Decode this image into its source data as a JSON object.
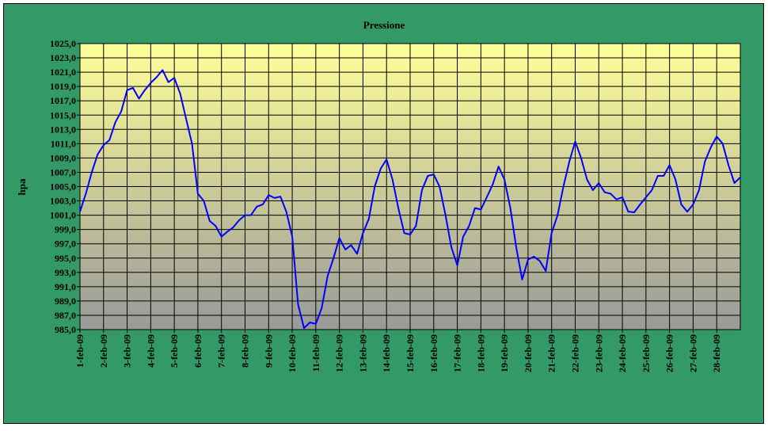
{
  "chart_data": {
    "type": "line",
    "title": "Pressione",
    "y_label": "hpa",
    "categories": [
      "1-feb-09",
      null,
      null,
      null,
      "2-feb-09",
      null,
      null,
      null,
      "3-feb-09",
      null,
      null,
      null,
      "4-feb-09",
      null,
      null,
      null,
      "5-feb-09",
      null,
      null,
      null,
      "6-feb-09",
      null,
      null,
      null,
      "7-feb-09",
      null,
      null,
      null,
      "8-feb-09",
      null,
      null,
      null,
      "9-feb-09",
      null,
      null,
      null,
      "10-feb-09",
      null,
      null,
      null,
      "11-feb-09",
      null,
      null,
      null,
      "12-feb-09",
      null,
      null,
      null,
      "13-feb-09",
      null,
      null,
      null,
      "14-feb-09",
      null,
      null,
      null,
      "15-feb-09",
      null,
      null,
      null,
      "16-feb-09",
      null,
      null,
      null,
      "17-feb-09",
      null,
      null,
      null,
      "18-feb-09",
      null,
      null,
      null,
      "19-feb-09",
      null,
      null,
      null,
      "20-feb-09",
      null,
      null,
      null,
      "21-feb-09",
      null,
      null,
      null,
      "22-feb-09",
      null,
      null,
      null,
      "23-feb-09",
      null,
      null,
      null,
      "24-feb-09",
      null,
      null,
      null,
      "25-feb-09",
      null,
      null,
      null,
      "26-feb-09",
      null,
      null,
      null,
      "27-feb-09",
      null,
      null,
      null,
      "28-feb-09",
      null,
      null,
      null,
      null
    ],
    "series": [
      {
        "name": "Pressione",
        "color": "#0000ff",
        "values": [
          1001.5,
          1004,
          1007,
          1009.5,
          1010.8,
          1011.5,
          1014,
          1015.5,
          1018.5,
          1018.8,
          1017.3,
          1018.5,
          1019.5,
          1020.3,
          1021.3,
          1019.6,
          1020.2,
          1018,
          1014.5,
          1011,
          1004,
          1003,
          1000.2,
          999.5,
          998,
          998.7,
          999.3,
          1000.3,
          1001,
          1001,
          1002.2,
          1002.5,
          1003.8,
          1003.4,
          1003.6,
          1001.5,
          998,
          988.5,
          985.2,
          986,
          985.8,
          988,
          992.5,
          995,
          997.8,
          996.2,
          996.8,
          995.6,
          998.5,
          1000.5,
          1005,
          1007.5,
          1008.8,
          1006,
          1002,
          998.5,
          998.3,
          999.5,
          1004.5,
          1006.5,
          1006.7,
          1005,
          1001,
          996.5,
          994,
          998,
          999.5,
          1002,
          1001.8,
          1003.5,
          1005.3,
          1007.8,
          1006,
          1002,
          996.5,
          992,
          994.8,
          995.2,
          994.6,
          993.2,
          998.5,
          1001,
          1005,
          1008.5,
          1011.3,
          1009,
          1006,
          1004.5,
          1005.5,
          1004.2,
          1004,
          1003.2,
          1003.5,
          1001.5,
          1001.4,
          1002.5,
          1003.5,
          1004.5,
          1006.5,
          1006.5,
          1008,
          1006,
          1002.5,
          1001.5,
          1002.5,
          1004.5,
          1008.5,
          1010.5,
          1012,
          1011,
          1008,
          1005.5,
          1006.3
        ]
      }
    ],
    "ylim": [
      985,
      1025
    ],
    "yticks": [
      {
        "value": 985,
        "label": "985,0"
      },
      {
        "value": 987,
        "label": "987,0"
      },
      {
        "value": 989,
        "label": "989,0"
      },
      {
        "value": 991,
        "label": "991,0"
      },
      {
        "value": 993,
        "label": "993,0"
      },
      {
        "value": 995,
        "label": "995,0"
      },
      {
        "value": 997,
        "label": "997,0"
      },
      {
        "value": 999,
        "label": "999,0"
      },
      {
        "value": 1001,
        "label": "1001,0"
      },
      {
        "value": 1003,
        "label": "1003,0"
      },
      {
        "value": 1005,
        "label": "1005,0"
      },
      {
        "value": 1007,
        "label": "1007,0"
      },
      {
        "value": 1009,
        "label": "1009,0"
      },
      {
        "value": 1011,
        "label": "1011,0"
      },
      {
        "value": 1013,
        "label": "1013,0"
      },
      {
        "value": 1015,
        "label": "1015,0"
      },
      {
        "value": 1017,
        "label": "1017,0"
      },
      {
        "value": 1019,
        "label": "1019,0"
      },
      {
        "value": 1021,
        "label": "1021,0"
      },
      {
        "value": 1023,
        "label": "1023,0"
      },
      {
        "value": 1025,
        "label": "1025,0"
      }
    ],
    "grid": true
  }
}
